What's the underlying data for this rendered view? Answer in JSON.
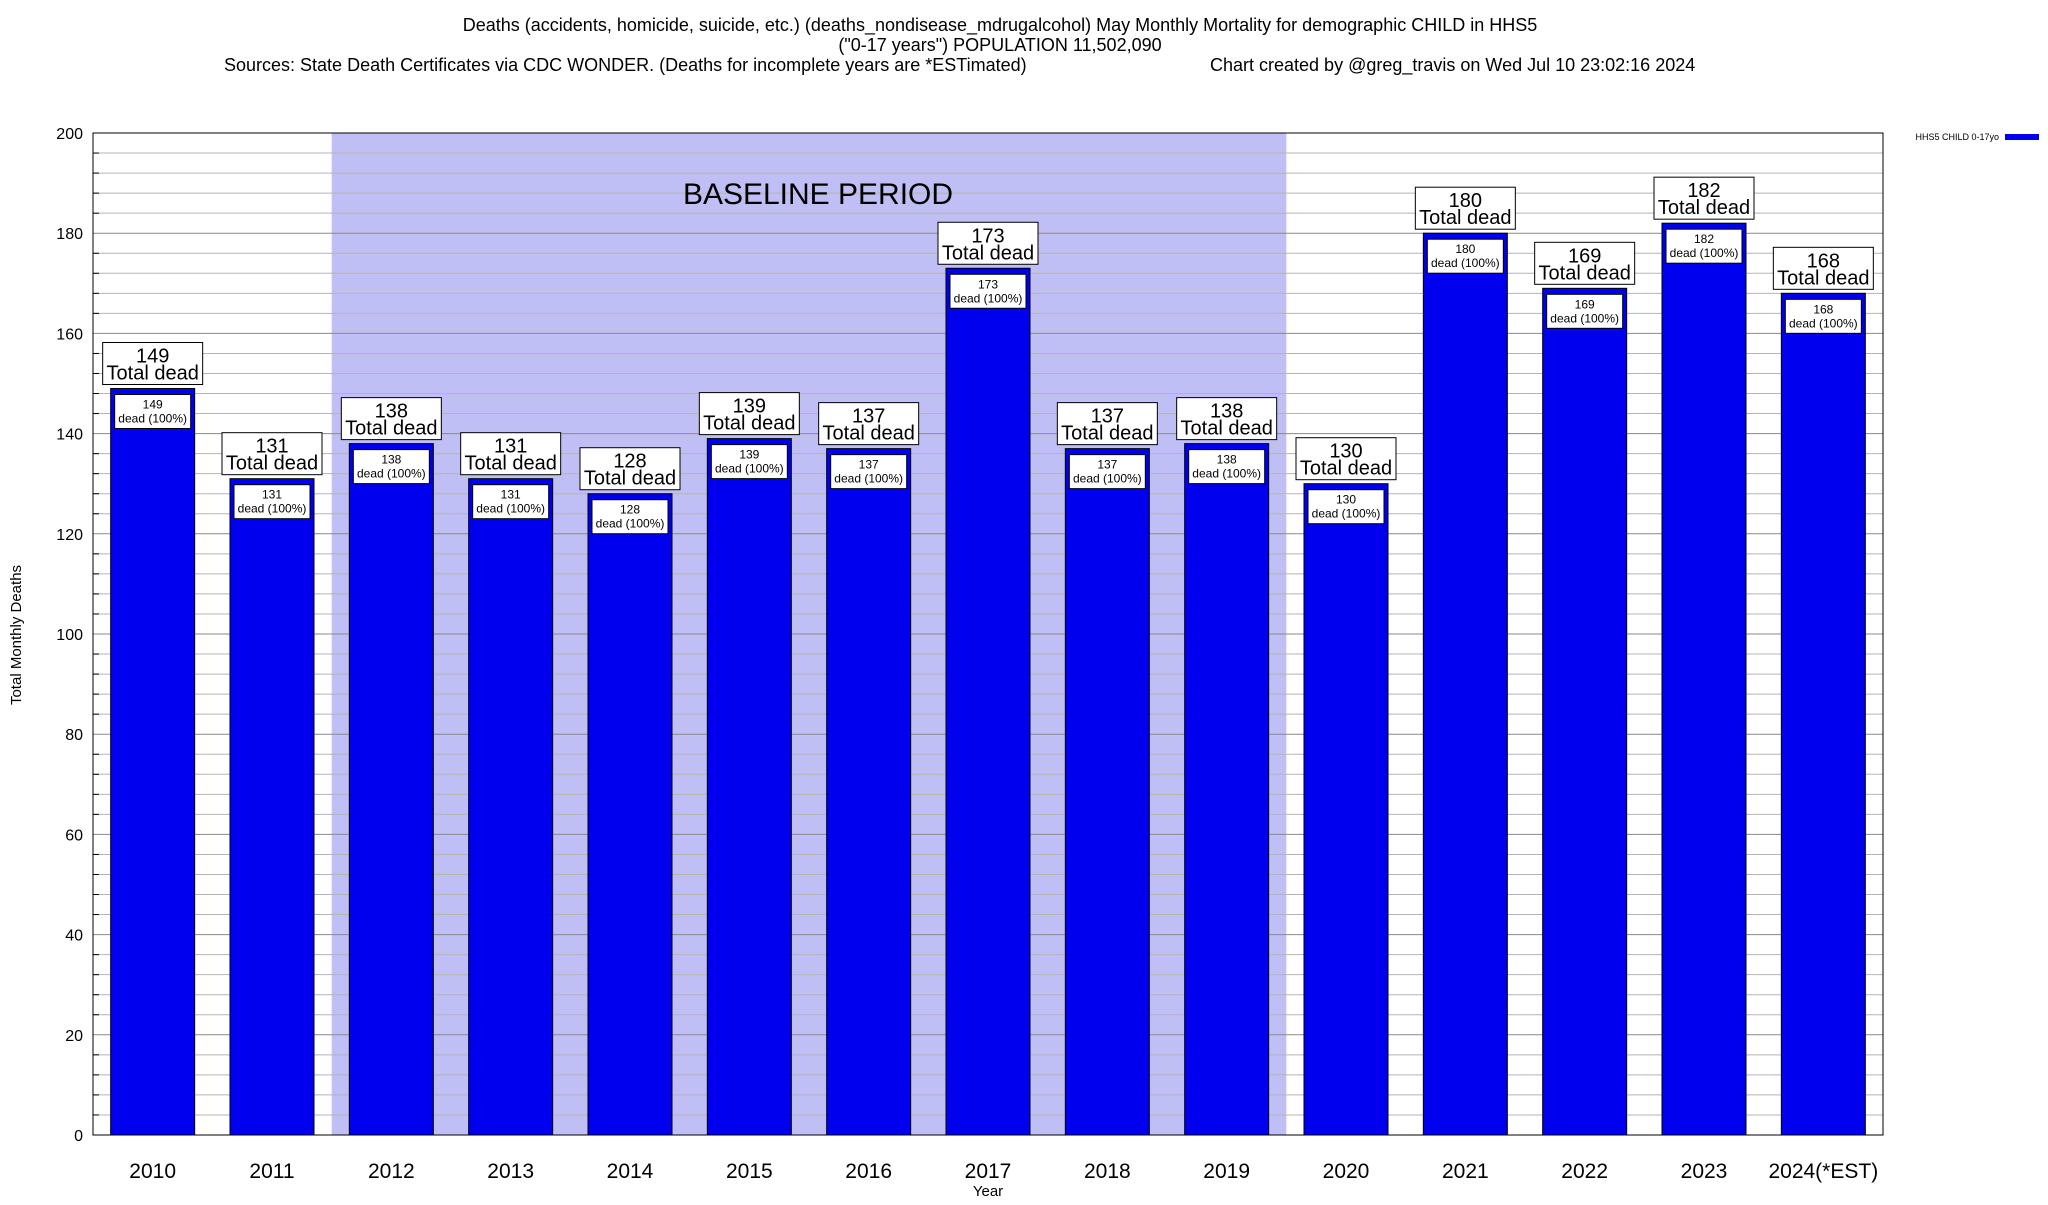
{
  "chart_data": {
    "type": "bar",
    "title_lines": [
      "Deaths (accidents, homicide, suicide, etc.) (deaths_nondisease_mdrugalcohol) May Monthly Mortality for demographic CHILD in HHS5",
      "(\"0-17 years\") POPULATION 11,502,090"
    ],
    "sources": "Sources: State Death Certificates via CDC WONDER. (Deaths for incomplete years are *ESTimated)",
    "credit": "Chart created by @greg_travis on Wed Jul 10 23:02:16 2024",
    "xlabel": "Year",
    "ylabel": "Total Monthly Deaths",
    "ylim": [
      0,
      200
    ],
    "yticks": [
      0,
      20,
      40,
      60,
      80,
      100,
      120,
      140,
      160,
      180,
      200
    ],
    "minor_tick_step": 4,
    "grid": true,
    "legend": {
      "label": "HHS5 CHILD 0-17yo",
      "position": "top-right",
      "color": "#0000ee"
    },
    "baseline_period": {
      "label": "BASELINE PERIOD",
      "from": "2012",
      "to": "2019",
      "color": "#bfbff5"
    },
    "categories": [
      "2010",
      "2011",
      "2012",
      "2013",
      "2014",
      "2015",
      "2016",
      "2017",
      "2018",
      "2019",
      "2020",
      "2021",
      "2022",
      "2023",
      "2024(*EST)"
    ],
    "series": [
      {
        "name": "HHS5 CHILD 0-17yo",
        "color": "#0000ee",
        "values": [
          149,
          131,
          138,
          131,
          128,
          139,
          137,
          173,
          137,
          138,
          130,
          180,
          169,
          182,
          168
        ]
      }
    ],
    "total_label_suffix": "Total dead",
    "inner_label_suffix": "dead (100%)"
  }
}
